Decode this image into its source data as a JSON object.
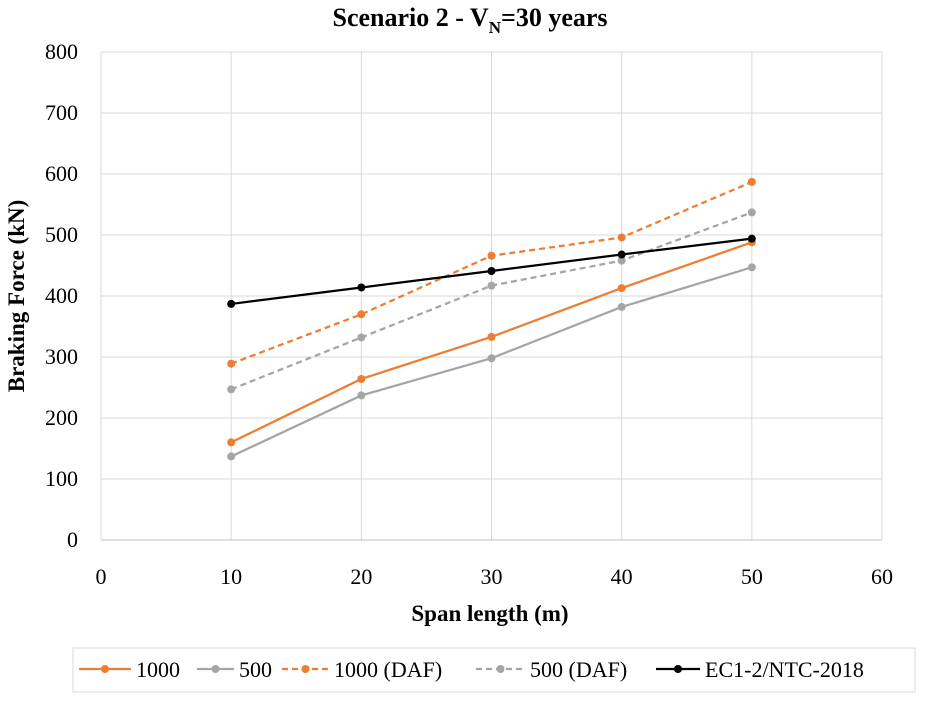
{
  "chart_data": {
    "type": "line",
    "title": {
      "main": "Scenario 2 - V",
      "subscript": "N",
      "rest": "=30 years"
    },
    "xlabel": "Span length (m)",
    "ylabel": "Braking Force (kN)",
    "xlim": [
      0,
      60
    ],
    "ylim": [
      0,
      800
    ],
    "xticks": [
      0,
      10,
      20,
      30,
      40,
      50,
      60
    ],
    "yticks": [
      0,
      100,
      200,
      300,
      400,
      500,
      600,
      700,
      800
    ],
    "grid": true,
    "legend_position": "bottom",
    "x": [
      10,
      20,
      30,
      40,
      50
    ],
    "series": [
      {
        "name": "1000",
        "values": [
          160,
          264,
          333,
          413,
          488
        ],
        "color": "#ED7D31",
        "dashed": false
      },
      {
        "name": "500",
        "values": [
          137,
          237,
          298,
          382,
          447
        ],
        "color": "#A5A5A5",
        "dashed": false
      },
      {
        "name": "1000 (DAF)",
        "values": [
          289,
          370,
          466,
          496,
          587
        ],
        "color": "#ED7D31",
        "dashed": true
      },
      {
        "name": "500 (DAF)",
        "values": [
          247,
          332,
          417,
          458,
          537
        ],
        "color": "#A5A5A5",
        "dashed": true
      },
      {
        "name": "EC1-2/NTC-2018",
        "values": [
          387,
          414,
          441,
          468,
          494
        ],
        "color": "#000000",
        "dashed": false
      }
    ]
  }
}
